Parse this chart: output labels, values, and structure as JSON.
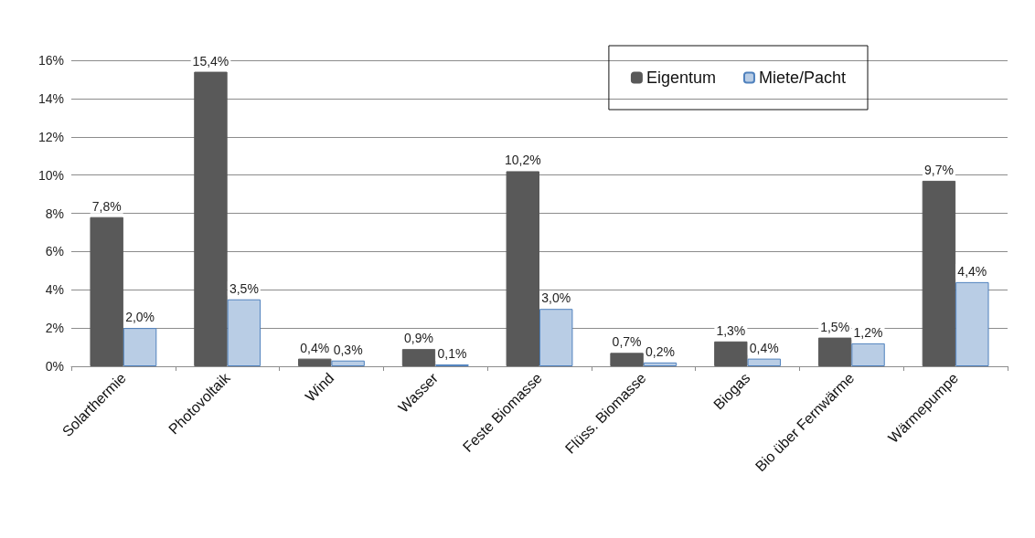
{
  "chart_data": {
    "type": "bar",
    "categories": [
      "Solarthermie",
      "Photovoltaik",
      "Wind",
      "Wasser",
      "Feste Biomasse",
      "Flüss. Biomasse",
      "Biogas",
      "Bio über Fernwärme",
      "Wärmepumpe"
    ],
    "series": [
      {
        "name": "Eigentum",
        "color": "#595959",
        "values": [
          7.8,
          15.4,
          0.4,
          0.9,
          10.2,
          0.7,
          1.3,
          1.5,
          9.7
        ],
        "value_labels": [
          "7,8%",
          "15,4%",
          "0,4%",
          "0,9%",
          "10,2%",
          "0,7%",
          "1,3%",
          "1,5%",
          "9,7%"
        ]
      },
      {
        "name": "Miete/Pacht",
        "color": "#b9cde5",
        "values": [
          2.0,
          3.5,
          0.3,
          0.1,
          3.0,
          0.2,
          0.4,
          1.2,
          4.4
        ],
        "value_labels": [
          "2,0%",
          "3,5%",
          "0,3%",
          "0,1%",
          "3,0%",
          "0,2%",
          "0,4%",
          "1,2%",
          "4,4%"
        ]
      }
    ],
    "ylim": [
      0,
      16
    ],
    "yticks": [
      {
        "value": 0,
        "label": "0%"
      },
      {
        "value": 2,
        "label": "2%"
      },
      {
        "value": 4,
        "label": "4%"
      },
      {
        "value": 6,
        "label": "6%"
      },
      {
        "value": 8,
        "label": "8%"
      },
      {
        "value": 10,
        "label": "10%"
      },
      {
        "value": 12,
        "label": "12%"
      },
      {
        "value": 14,
        "label": "14%"
      },
      {
        "value": 16,
        "label": "16%"
      }
    ],
    "grid": "y",
    "legend": "top right"
  }
}
